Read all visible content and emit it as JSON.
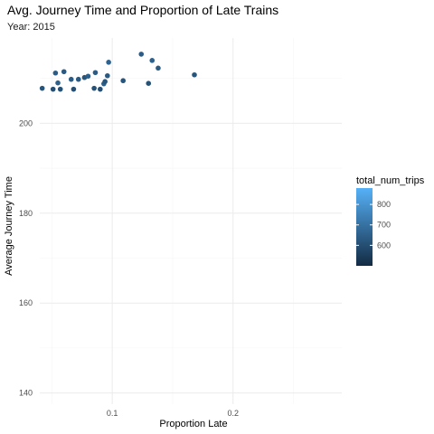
{
  "chart_data": {
    "type": "scatter",
    "title": "Avg. Journey Time and Proportion of Late Trains",
    "subtitle": "Year: 2015",
    "xlabel": "Proportion Late",
    "ylabel": "Average Journey Time",
    "xlim": [
      0.04,
      0.29
    ],
    "ylim": [
      137.5,
      219
    ],
    "x_ticks": [
      0.1,
      0.2
    ],
    "x_tick_labels": [
      "0.1",
      "0.2"
    ],
    "y_ticks": [
      140,
      160,
      180,
      200
    ],
    "y_tick_labels": [
      "140",
      "160",
      "180",
      "200"
    ],
    "grid": true,
    "color_scale": {
      "name": "total_num_trips",
      "min": 500,
      "max": 880,
      "low_color": "#132B43",
      "high_color": "#56B1F7",
      "ticks": [
        600,
        700,
        800
      ],
      "tick_labels": [
        "600",
        "700",
        "800"
      ],
      "placement": "right"
    },
    "points": [
      {
        "x": 0.042,
        "y": 207.8,
        "c": 620
      },
      {
        "x": 0.051,
        "y": 207.6,
        "c": 600
      },
      {
        "x": 0.053,
        "y": 211.2,
        "c": 640
      },
      {
        "x": 0.055,
        "y": 209.0,
        "c": 650
      },
      {
        "x": 0.057,
        "y": 207.6,
        "c": 610
      },
      {
        "x": 0.06,
        "y": 211.5,
        "c": 630
      },
      {
        "x": 0.066,
        "y": 209.8,
        "c": 640
      },
      {
        "x": 0.068,
        "y": 207.6,
        "c": 600
      },
      {
        "x": 0.072,
        "y": 209.8,
        "c": 630
      },
      {
        "x": 0.077,
        "y": 210.2,
        "c": 620
      },
      {
        "x": 0.08,
        "y": 210.5,
        "c": 650
      },
      {
        "x": 0.085,
        "y": 207.8,
        "c": 610
      },
      {
        "x": 0.086,
        "y": 211.3,
        "c": 640
      },
      {
        "x": 0.09,
        "y": 207.6,
        "c": 600
      },
      {
        "x": 0.093,
        "y": 208.8,
        "c": 650
      },
      {
        "x": 0.094,
        "y": 209.3,
        "c": 620
      },
      {
        "x": 0.096,
        "y": 210.6,
        "c": 630
      },
      {
        "x": 0.097,
        "y": 213.6,
        "c": 660
      },
      {
        "x": 0.109,
        "y": 209.5,
        "c": 620
      },
      {
        "x": 0.124,
        "y": 215.4,
        "c": 640
      },
      {
        "x": 0.13,
        "y": 208.9,
        "c": 610
      },
      {
        "x": 0.133,
        "y": 214.0,
        "c": 650
      },
      {
        "x": 0.138,
        "y": 212.3,
        "c": 630
      },
      {
        "x": 0.168,
        "y": 210.8,
        "c": 620
      }
    ]
  }
}
